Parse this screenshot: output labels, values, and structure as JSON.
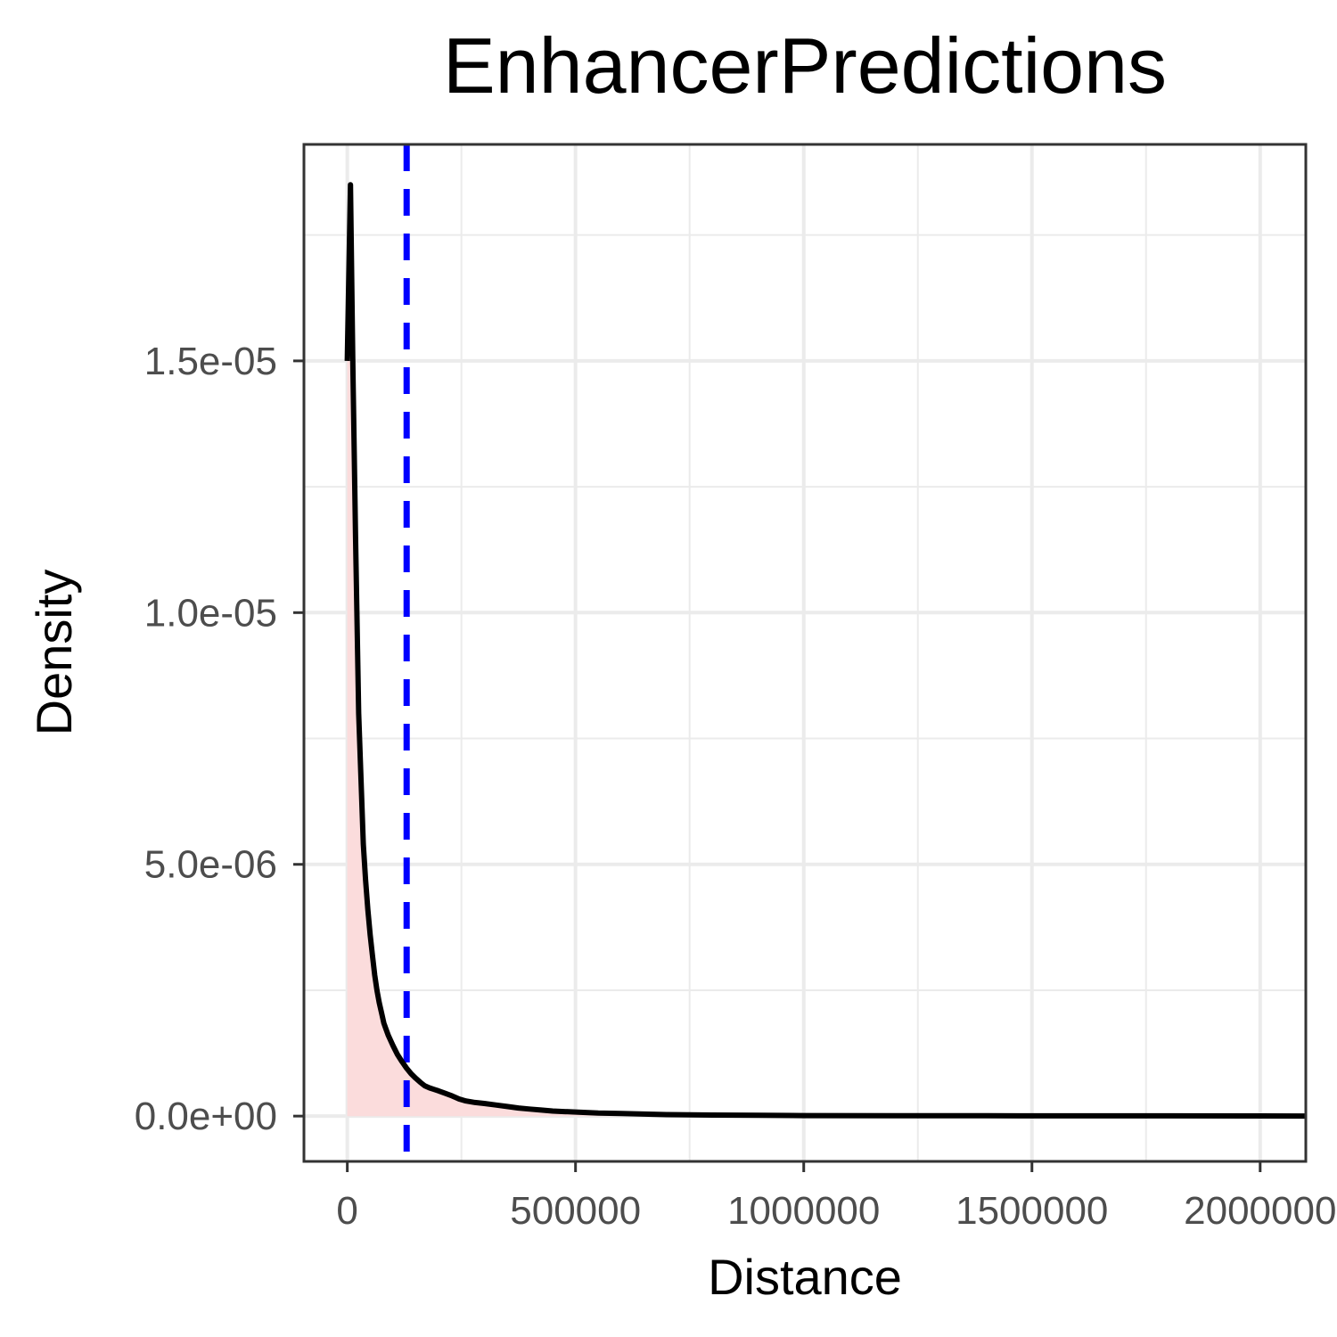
{
  "chart_data": {
    "type": "area",
    "title": "EnhancerPredictions",
    "xlabel": "Distance",
    "ylabel": "Density",
    "xlim": [
      -95000,
      2100000
    ],
    "ylim": [
      -9e-07,
      1.93e-05
    ],
    "x_ticks": [
      0,
      500000,
      1000000,
      1500000,
      2000000
    ],
    "x_tick_labels": [
      "0",
      "500000",
      "1000000",
      "1500000",
      "2000000"
    ],
    "y_ticks": [
      0,
      5e-06,
      1e-05,
      1.5e-05
    ],
    "y_tick_labels": [
      "0.0e+00",
      "5.0e-06",
      "1.0e-05",
      "1.5e-05"
    ],
    "grid": true,
    "legend": "none",
    "series": [
      {
        "x": [
          0,
          7000,
          12000,
          18000,
          25000,
          30000,
          35000,
          40000,
          45000,
          50000,
          55000,
          60000,
          65000,
          70000,
          75000,
          80000,
          85000,
          90000,
          100000,
          110000,
          120000,
          130000,
          140000,
          150000,
          160000,
          170000,
          180000,
          190000,
          200000,
          215000,
          230000,
          245000,
          260000,
          280000,
          300000,
          325000,
          350000,
          375000,
          400000,
          425000,
          450000,
          475000,
          500000,
          550000,
          600000,
          650000,
          700000,
          800000,
          900000,
          1000000,
          1200000,
          1400000,
          1600000,
          1800000,
          2000000,
          2100000
        ],
        "y": [
          1.5e-05,
          1.85e-05,
          1.5e-05,
          1.15e-05,
          8e-06,
          6.7e-06,
          5.4e-06,
          4.7e-06,
          4.1e-06,
          3.6e-06,
          3.2e-06,
          2.8e-06,
          2.5e-06,
          2.25e-06,
          2.05e-06,
          1.85e-06,
          1.72e-06,
          1.6e-06,
          1.4e-06,
          1.22e-06,
          1.08e-06,
          9.5e-07,
          8.4e-07,
          7.5e-07,
          6.7e-07,
          6e-07,
          5.6e-07,
          5.3e-07,
          5e-07,
          4.5e-07,
          4e-07,
          3.4e-07,
          3e-07,
          2.7e-07,
          2.5e-07,
          2.2e-07,
          1.9e-07,
          1.6e-07,
          1.4e-07,
          1.2e-07,
          1e-07,
          9e-08,
          8e-08,
          6e-08,
          5e-08,
          4e-08,
          3e-08,
          2e-08,
          1.5e-08,
          1e-08,
          8e-09,
          6e-09,
          5e-09,
          4e-09,
          3e-09,
          2e-09
        ]
      }
    ],
    "vline": {
      "x": 130000
    },
    "colors": {
      "line": "#000000",
      "fill": "#fbdcdc",
      "vline": "#0000ff",
      "grid": "#ebebeb",
      "border": "#333333",
      "tick_text": "#4d4d4d"
    }
  }
}
